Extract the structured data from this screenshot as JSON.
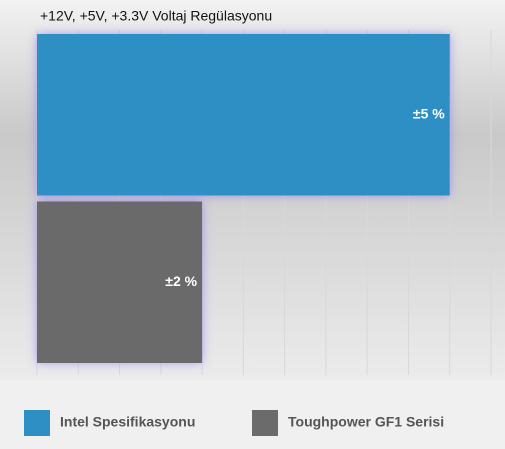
{
  "chart_data": {
    "type": "bar",
    "orientation": "horizontal",
    "title": "+12V, +5V, +3.3V Voltaj Regülasyonu",
    "series": [
      {
        "name": "Intel Spesifikasyonu",
        "color": "#2e8fc5",
        "values": [
          5
        ],
        "value_labels": [
          "±5 %"
        ]
      },
      {
        "name": "Toughpower GF1 Serisi",
        "color": "#6b6b6b",
        "values": [
          2
        ],
        "value_labels": [
          "±2 %"
        ]
      }
    ],
    "xlim": [
      0,
      5.5
    ],
    "xticks": [
      0,
      0.5,
      1,
      1.5,
      2,
      2.5,
      3,
      3.5,
      4,
      4.5,
      5,
      5.5
    ],
    "grid": true
  }
}
